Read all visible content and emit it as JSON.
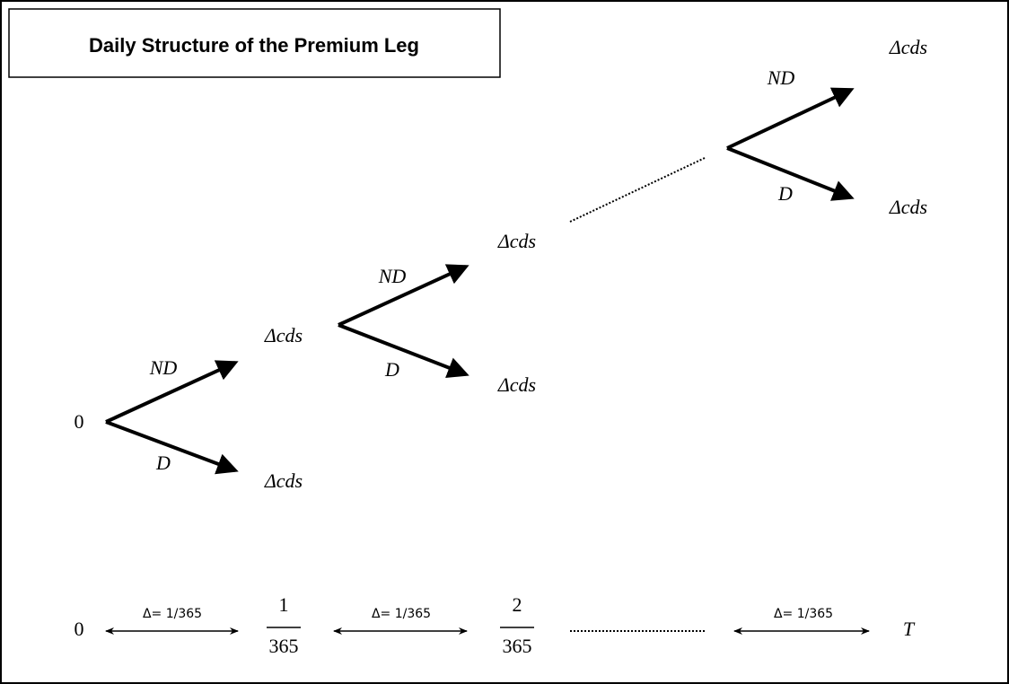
{
  "title": "Daily Structure of the Premium Leg",
  "nodes": [
    {
      "label": "0"
    },
    {
      "label": "Δcds"
    },
    {
      "label": "Δcds"
    },
    {
      "label": "Δcds"
    },
    {
      "label": "Δcds"
    },
    {
      "label": "Δcds"
    },
    {
      "label": "Δcds"
    }
  ],
  "edges": [
    {
      "label": "ND"
    },
    {
      "label": "D"
    },
    {
      "label": "ND"
    },
    {
      "label": "D"
    },
    {
      "label": "ND"
    },
    {
      "label": "D"
    }
  ],
  "timeline": {
    "points": [
      {
        "label": "0"
      },
      {
        "numerator": "1",
        "denominator": "365"
      },
      {
        "numerator": "2",
        "denominator": "365"
      },
      {
        "label": "T"
      }
    ],
    "intervals": [
      {
        "label": "Δ= 1/365"
      },
      {
        "label": "Δ= 1/365"
      },
      {
        "label": "Δ= 1/365"
      }
    ]
  }
}
